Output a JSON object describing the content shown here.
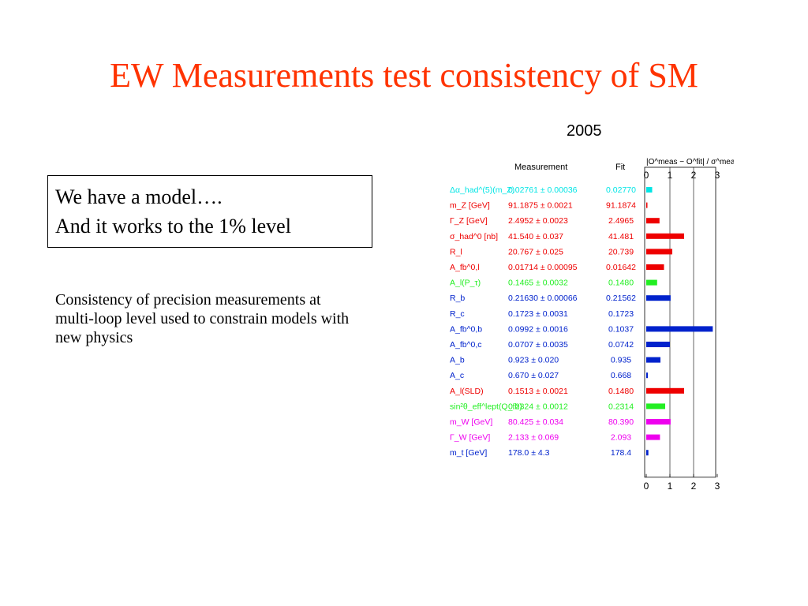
{
  "slide": {
    "title": "EW Measurements test consistency of SM",
    "year": "2005",
    "model_lines": [
      "We have a model….",
      "And it works to the 1% level"
    ],
    "consistency_text": "Consistency  of precision measurements at multi-loop level used to constrain models with new physics"
  },
  "chart_data": {
    "type": "table",
    "columns": [
      "Measurement",
      "Fit",
      "|O^meas − O^fit| / σ^meas"
    ],
    "pull_axis_ticks": [
      "0",
      "1",
      "2",
      "3"
    ],
    "xlim": [
      0,
      3
    ],
    "rows": [
      {
        "name": "Δα_had^(5)(m_Z)",
        "measurement": "0.02761 ± 0.00036",
        "fit": "0.02770",
        "pull": 0.25,
        "color": "#00e5e5"
      },
      {
        "name": "m_Z [GeV]",
        "measurement": "91.1875 ± 0.0021",
        "fit": "91.1874",
        "pull": 0.05,
        "color": "#ee0000"
      },
      {
        "name": "Γ_Z [GeV]",
        "measurement": "2.4952 ± 0.0023",
        "fit": "2.4965",
        "pull": 0.56,
        "color": "#ee0000"
      },
      {
        "name": "σ_had^0 [nb]",
        "measurement": "41.540 ± 0.037",
        "fit": "41.481",
        "pull": 1.6,
        "color": "#ee0000"
      },
      {
        "name": "R_l",
        "measurement": "20.767 ± 0.025",
        "fit": "20.739",
        "pull": 1.1,
        "color": "#ee0000"
      },
      {
        "name": "A_fb^0,l",
        "measurement": "0.01714 ± 0.00095",
        "fit": "0.01642",
        "pull": 0.75,
        "color": "#ee0000"
      },
      {
        "name": "A_l(P_τ)",
        "measurement": "0.1465 ± 0.0032",
        "fit": "0.1480",
        "pull": 0.46,
        "color": "#22ee22"
      },
      {
        "name": "R_b",
        "measurement": "0.21630 ± 0.00066",
        "fit": "0.21562",
        "pull": 1.03,
        "color": "#0022cc"
      },
      {
        "name": "R_c",
        "measurement": "0.1723 ± 0.0031",
        "fit": "0.1723",
        "pull": 0.0,
        "color": "#0022cc"
      },
      {
        "name": "A_fb^0,b",
        "measurement": "0.0992 ± 0.0016",
        "fit": "0.1037",
        "pull": 2.81,
        "color": "#0022cc"
      },
      {
        "name": "A_fb^0,c",
        "measurement": "0.0707 ± 0.0035",
        "fit": "0.0742",
        "pull": 1.0,
        "color": "#0022cc"
      },
      {
        "name": "A_b",
        "measurement": "0.923 ± 0.020",
        "fit": "0.935",
        "pull": 0.6,
        "color": "#0022cc"
      },
      {
        "name": "A_c",
        "measurement": "0.670 ± 0.027",
        "fit": "0.668",
        "pull": 0.07,
        "color": "#0022cc"
      },
      {
        "name": "A_l(SLD)",
        "measurement": "0.1513 ± 0.0021",
        "fit": "0.1480",
        "pull": 1.6,
        "color": "#ee0000"
      },
      {
        "name": "sin²θ_eff^lept(Q_fb)",
        "measurement": "0.2324 ± 0.0012",
        "fit": "0.2314",
        "pull": 0.8,
        "color": "#22ee22"
      },
      {
        "name": "m_W [GeV]",
        "measurement": "80.425 ± 0.034",
        "fit": "80.390",
        "pull": 1.03,
        "color": "#ee00ee"
      },
      {
        "name": "Γ_W [GeV]",
        "measurement": "2.133 ± 0.069",
        "fit": "2.093",
        "pull": 0.58,
        "color": "#ee00ee"
      },
      {
        "name": "m_t [GeV]",
        "measurement": "178.0 ± 4.3",
        "fit": "178.4",
        "pull": 0.09,
        "color": "#0022cc"
      }
    ]
  }
}
